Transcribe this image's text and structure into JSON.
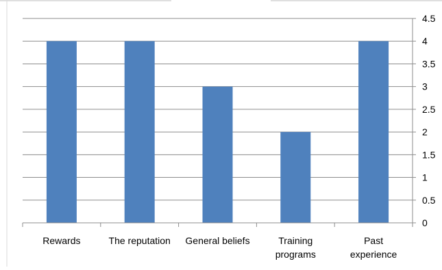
{
  "chart_data": {
    "type": "bar",
    "categories": [
      [
        "Rewards"
      ],
      [
        "The reputation"
      ],
      [
        "General beliefs"
      ],
      [
        "Training",
        "programs"
      ],
      [
        "Past",
        "experience"
      ]
    ],
    "values": [
      4,
      4,
      3,
      2,
      4
    ],
    "title": "",
    "xlabel": "",
    "ylabel": "",
    "ylim": [
      0,
      4.5
    ],
    "y_ticks": [
      "0",
      "0.5",
      "1",
      "1.5",
      "2",
      "2.5",
      "3",
      "3.5",
      "4",
      "4.5"
    ],
    "y_axis_side": "right",
    "grid": true,
    "legend": "none",
    "colors": {
      "bar": "#4f81bd",
      "gridline": "#8c8c8c",
      "axis": "#8c8c8c",
      "frame": "#bfbfbf",
      "text": "#000000"
    }
  }
}
